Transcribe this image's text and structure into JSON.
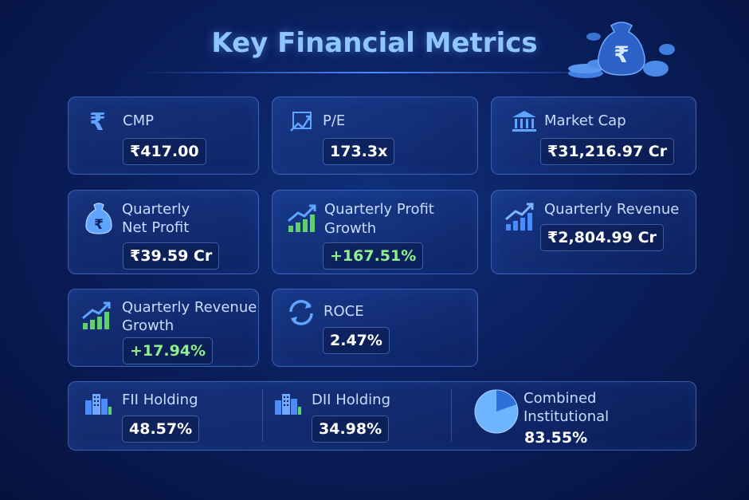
{
  "title": "Key Financial Metrics",
  "metrics": {
    "cmp": {
      "label": "CMP",
      "value": "₹417.00",
      "icon": "rupee-icon"
    },
    "pe": {
      "label": "P/E",
      "value": "173.3x",
      "icon": "chart-icon"
    },
    "market_cap": {
      "label": "Market Cap",
      "value": "₹31,216.97 Cr",
      "icon": "bank-icon"
    },
    "quarterly_net_profit": {
      "label_line1": "Quarterly",
      "label_line2": "Net Profit",
      "value": "₹39.59 Cr",
      "icon": "money-bag-icon"
    },
    "quarterly_profit_growth": {
      "label_line1": "Quarterly Profit",
      "label_line2": "Growth",
      "value": "+167.51%",
      "icon": "growth-chart-icon"
    },
    "quarterly_revenue": {
      "label": "Quarterly Revenue",
      "value": "₹2,804.99 Cr",
      "icon": "growth-chart-icon"
    },
    "quarterly_revenue_growth": {
      "label_line1": "Quarterly Revenue",
      "label_line2": "Growth",
      "value": "+17.94%",
      "icon": "growth-chart-icon"
    },
    "roce": {
      "label": "ROCE",
      "value": "2.47%",
      "icon": "refresh-icon"
    }
  },
  "holdings": {
    "fii": {
      "label": "FII Holding",
      "value": "48.57%",
      "icon": "buildings-icon"
    },
    "dii": {
      "label": "DII Holding",
      "value": "34.98%",
      "icon": "buildings-icon"
    },
    "combined": {
      "label_line1": "Combined",
      "label_line2": "Institutional",
      "value": "83.55%",
      "icon": "pie-chart-icon"
    }
  },
  "colors": {
    "accent": "#4a8cff",
    "positive": "#8ef08a",
    "title": "#8fc6ff"
  }
}
